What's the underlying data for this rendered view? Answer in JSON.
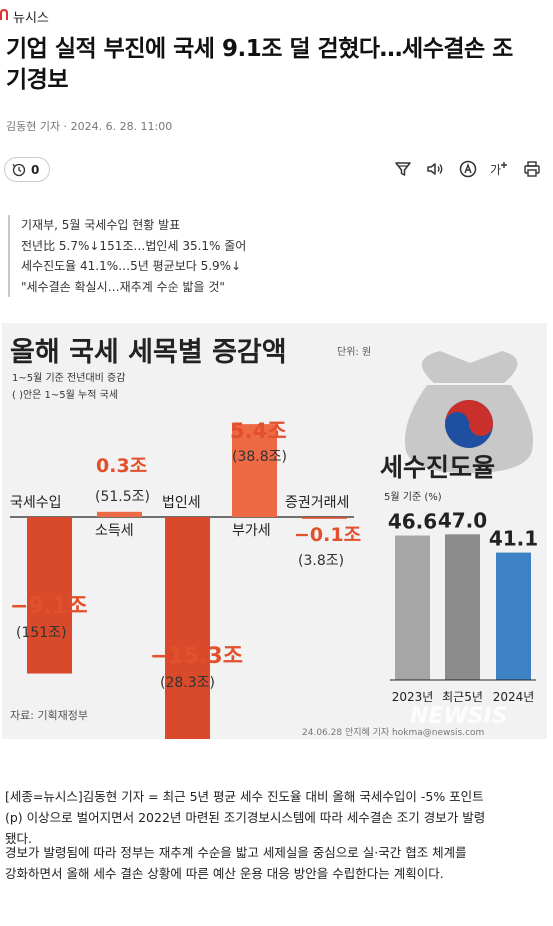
{
  "site": {
    "name": "뉴시스",
    "brand_color": "#e0322c"
  },
  "article": {
    "headline_line1": "기업 실적 부진에 국세 9.1조 덜 걷혔다…세수결손 조",
    "headline_line2": "기경보",
    "byline": "김동현 기자 · 2024. 6. 28. 11:00",
    "reaction_count": "0",
    "summary": [
      "기재부, 5월 국세수입 현황 발표",
      "전년比 5.7%↓151조…법인세 35.1% 줄어",
      "세수진도율 41.1%…5년 평균보다 5.9%↓",
      "\"세수결손 확실시…재추계 수순 밟을 것\""
    ],
    "body_p1_line1": "[세종=뉴시스]김동현 기자 = 최근 5년 평균 세수 진도율 대비 올해 국세수입이 -5% 포인트",
    "body_p1_line2": "(p) 이상으로 벌어지면서 2022년 마련된 조기경보시스템에 따라 세수결손 조기 경보가 발령",
    "body_p1_line3": "됐다.",
    "body_p2_line1": "경보가 발령됨에 따라 정부는 재추계 수순을 밟고 세제실을 중심으로 실·국간 협조 체계를",
    "body_p2_line2": "강화하면서 올해 세수 결손 상황에 따른 예산 운용 대응 방안을 수립한다는 계획이다."
  },
  "toolbar": {
    "icons": [
      "reaction-icon",
      "filter-icon",
      "audio-icon",
      "translate-icon",
      "font-size-icon",
      "print-icon"
    ],
    "font_size_label": "가⁺"
  },
  "chart_data": [
    {
      "type": "bar",
      "title": "올해 국세 세목별 증감액",
      "unit": "단위: 원",
      "note1": "1~5월 기준 전년대비 증감",
      "note2": "( )안은 1~5월 누적 국세",
      "categories": [
        "국세수입",
        "소득세",
        "법인세",
        "부가세",
        "증권거래세"
      ],
      "values": [
        -9.1,
        0.3,
        -15.3,
        5.4,
        -0.1
      ],
      "value_labels": [
        "−9.1조",
        "0.3조",
        "−15.3조",
        "5.4조",
        "−0.1조"
      ],
      "cumulative_labels": [
        "(151조)",
        "(51.5조)",
        "(28.3조)",
        "(38.8조)",
        "(3.8조)"
      ],
      "colors": {
        "negative": "#d94a2a",
        "positive": "#ee6a45",
        "value_text": "#e2502c"
      },
      "source": "자료: 기획재정부",
      "credit": "24.06.28 안지혜 기자 hokma@newsis.com",
      "watermark": "NEWSIS"
    },
    {
      "type": "bar",
      "title": "세수진도율",
      "subtitle": "5월 기준 (%)",
      "categories": [
        "2023년",
        "최근5년",
        "2024년"
      ],
      "values": [
        46.6,
        47.0,
        41.1
      ],
      "value_labels": [
        "46.6",
        "47.0",
        "41.1"
      ],
      "colors": [
        "#a6a6a6",
        "#8c8c8c",
        "#3d82c4"
      ]
    }
  ]
}
